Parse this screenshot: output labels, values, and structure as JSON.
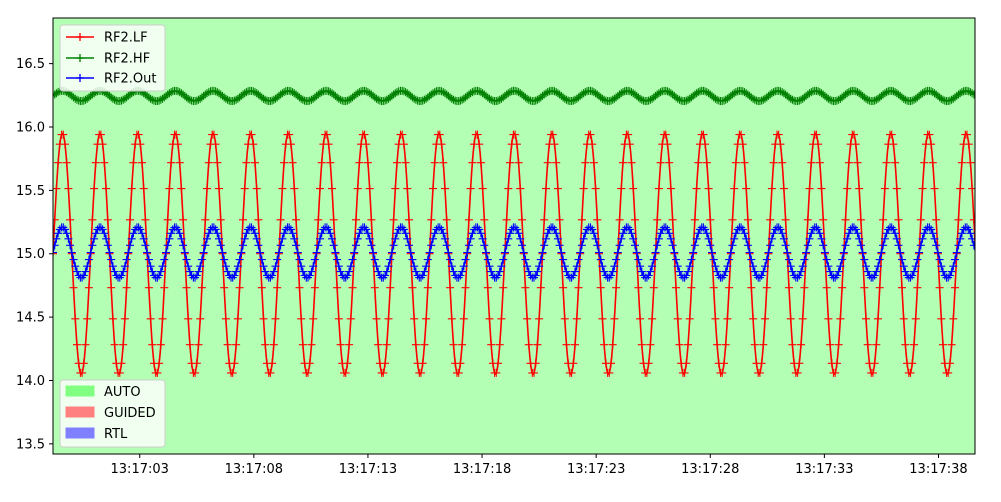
{
  "chart_data": {
    "type": "line",
    "background_color": "#b3ffb3",
    "grid": false,
    "xlim": [
      "13:16:59.2",
      "13:17:39.6"
    ],
    "ylim": [
      13.42,
      16.86
    ],
    "x_ticks": [
      "13:17:03",
      "13:17:08",
      "13:17:13",
      "13:17:18",
      "13:17:23",
      "13:17:28",
      "13:17:33",
      "13:17:38"
    ],
    "y_ticks": [
      "13.5",
      "14.0",
      "14.5",
      "15.0",
      "15.5",
      "16.0",
      "16.5"
    ],
    "series": [
      {
        "name": "RF2.LF",
        "color": "#ff0000",
        "marker": "+",
        "signal": {
          "shape": "sine",
          "mean": 15.0,
          "amplitude": 0.95,
          "period_s": 1.65,
          "start": "13:16:59.2",
          "end": "13:17:39.6"
        }
      },
      {
        "name": "RF2.HF",
        "color": "#008000",
        "marker": "+",
        "signal": {
          "shape": "sine",
          "mean": 16.245,
          "amplitude": 0.04,
          "period_s": 1.65,
          "start": "13:16:59.2",
          "end": "13:17:39.6"
        }
      },
      {
        "name": "RF2.Out",
        "color": "#0000ff",
        "marker": "+",
        "signal": {
          "shape": "sine",
          "mean": 15.01,
          "amplitude": 0.2,
          "period_s": 1.65,
          "start": "13:16:59.2",
          "end": "13:17:39.6"
        }
      }
    ],
    "series_legend": {
      "placement": "upper-left"
    },
    "mode_legend": {
      "placement": "lower-left",
      "items": [
        {
          "name": "AUTO",
          "color": "#80ff80"
        },
        {
          "name": "GUIDED",
          "color": "#ff8080"
        },
        {
          "name": "RTL",
          "color": "#8080ff"
        }
      ]
    }
  }
}
